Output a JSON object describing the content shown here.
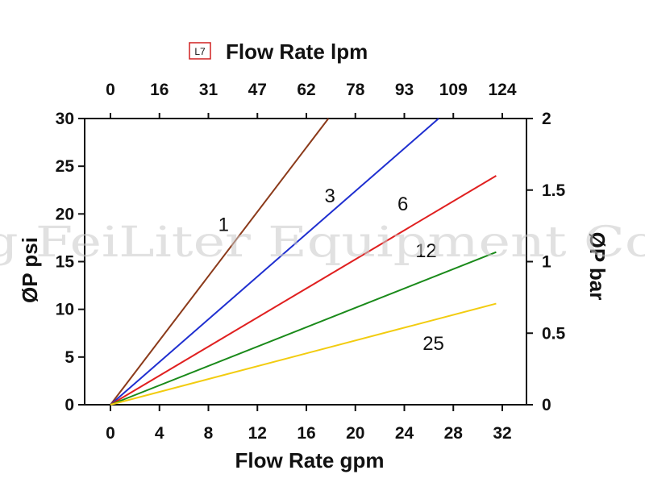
{
  "chart_data": {
    "type": "line",
    "model_badge": "L7",
    "title": "Flow Rate lpm",
    "xlabel": "Flow Rate gpm",
    "ylabel": "ØP psi",
    "y2label": "ØP bar",
    "watermark": "g FeiLiter Equipment Co",
    "x_range": [
      0,
      32
    ],
    "y_range": [
      0,
      30
    ],
    "y2_range": [
      0,
      2
    ],
    "x_ticks": [
      "0",
      "4",
      "8",
      "12",
      "16",
      "20",
      "24",
      "28",
      "32"
    ],
    "x_top_ticks": [
      "0",
      "16",
      "31",
      "47",
      "62",
      "78",
      "93",
      "109",
      "124"
    ],
    "y_ticks": [
      "0",
      "5",
      "10",
      "15",
      "20",
      "25",
      "30"
    ],
    "y2_ticks": [
      "0",
      "0.5",
      "1",
      "1.5",
      "2"
    ],
    "series": [
      {
        "name": "1",
        "color": "#8b3a1a",
        "points": [
          [
            0,
            0
          ],
          [
            17.8,
            30
          ]
        ]
      },
      {
        "name": "3",
        "color": "#1f2fd0",
        "points": [
          [
            0,
            0
          ],
          [
            26.8,
            30
          ]
        ]
      },
      {
        "name": "6",
        "color": "#e02020",
        "points": [
          [
            0,
            0
          ],
          [
            31.5,
            24
          ]
        ]
      },
      {
        "name": "12",
        "color": "#1a8a1a",
        "points": [
          [
            0,
            0
          ],
          [
            31.5,
            16
          ]
        ]
      },
      {
        "name": "25",
        "color": "#f2cc10",
        "points": [
          [
            0,
            0
          ],
          [
            31.5,
            10.6
          ]
        ]
      }
    ]
  }
}
